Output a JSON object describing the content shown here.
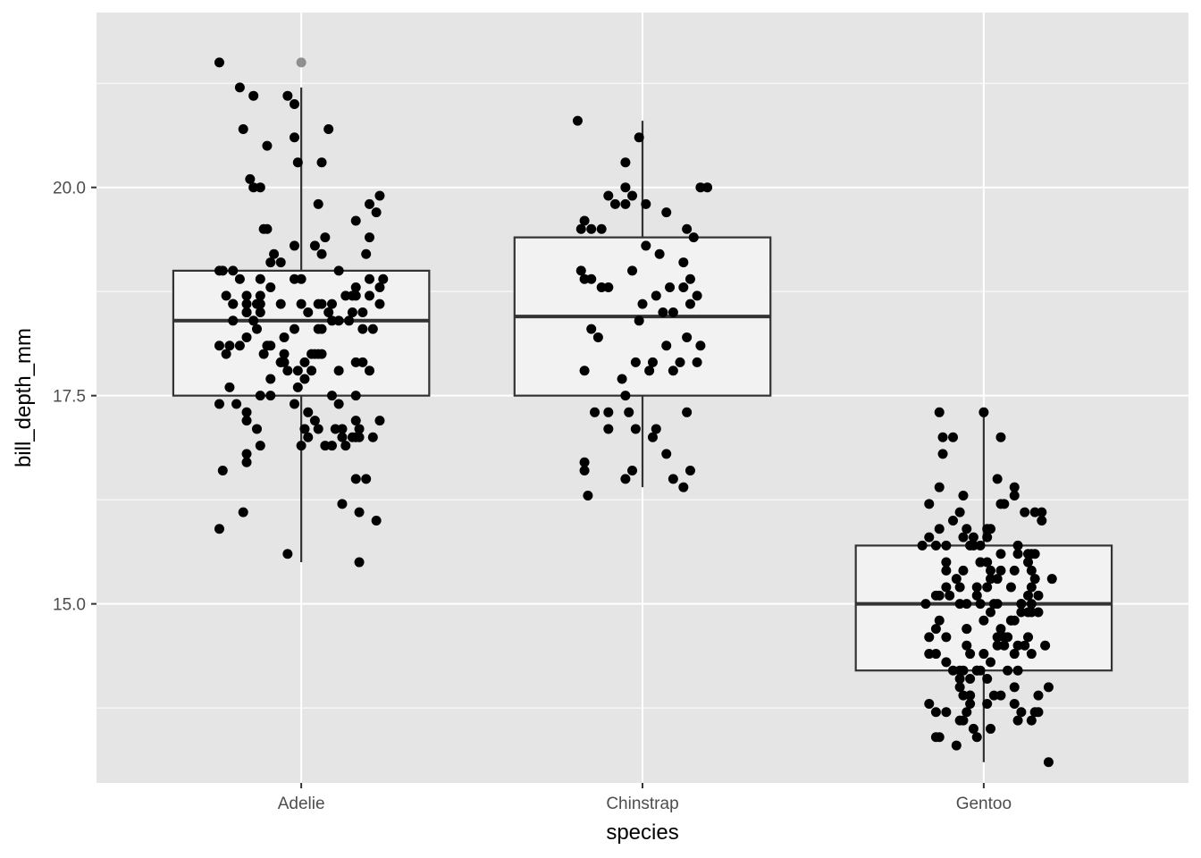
{
  "chart_data": {
    "type": "boxplot",
    "xlabel": "species",
    "ylabel": "bill_depth_mm",
    "categories": [
      "Adelie",
      "Chinstrap",
      "Gentoo"
    ],
    "ylim": [
      12.85,
      22.1
    ],
    "y_ticks": [
      15.0,
      17.5,
      20.0
    ],
    "y_tick_labels": [
      "15.0",
      "17.5",
      "20.0"
    ],
    "y_minor_ticks": [
      13.75,
      16.25,
      18.75,
      21.25
    ],
    "grid": true,
    "legend": "none",
    "colors": {
      "panel": "#e5e5e5",
      "grid": "#ffffff",
      "box_fill": "#f2f2f2",
      "box_line": "#333333",
      "points": "#000000",
      "outlier": "#7f7f7f"
    },
    "boxes": [
      {
        "category": "Adelie",
        "min": 15.5,
        "q1": 17.5,
        "median": 18.4,
        "q3": 19.0,
        "max": 21.2,
        "outliers": [
          21.5
        ]
      },
      {
        "category": "Chinstrap",
        "min": 16.4,
        "q1": 17.5,
        "median": 18.45,
        "q3": 19.4,
        "max": 20.8,
        "outliers": []
      },
      {
        "category": "Gentoo",
        "min": 13.1,
        "q1": 14.2,
        "median": 15.0,
        "q3": 15.7,
        "max": 17.3,
        "outliers": []
      }
    ],
    "points": [
      {
        "category": "Adelie",
        "dx": [
          -0.24,
          -0.18,
          -0.14,
          -0.04,
          -0.02,
          -0.17,
          0.08,
          -0.1,
          -0.02,
          0.06,
          -0.01,
          -0.14,
          0.23,
          -0.15,
          0.22,
          -0.12,
          -0.11,
          0.2,
          -0.1,
          0.07,
          0.16,
          0.2,
          0.04,
          0.19,
          0.06,
          -0.08,
          -0.2,
          -0.18,
          -0.09,
          -0.24,
          -0.12,
          -0.02,
          0.24,
          0.11,
          -0.22,
          0.0,
          0.23,
          -0.16,
          0.15,
          -0.06,
          0.05,
          0.09,
          -0.13,
          -0.2,
          0.06,
          -0.16,
          0.14,
          -0.16,
          0.15,
          0.13,
          0.02,
          -0.14,
          -0.2,
          -0.12,
          0.06,
          0.08,
          -0.02,
          0.11,
          -0.05,
          0.05,
          0.09,
          0.21,
          -0.21,
          -0.1,
          -0.09,
          -0.06,
          0.18,
          -0.18,
          0.04,
          -0.24,
          0.05,
          0.16,
          -0.05,
          0.03,
          0.2,
          -0.22,
          -0.04,
          0.01,
          0.03,
          -0.05,
          0.01,
          -0.01,
          -0.09,
          0.18,
          0.16,
          -0.09,
          -0.01,
          -0.02,
          -0.21,
          -0.12,
          -0.24,
          0.11,
          0.09,
          -0.16,
          0.02,
          0.01,
          -0.16,
          0.04,
          0.16,
          0.23,
          0.1,
          0.17,
          -0.13,
          0.16,
          0.17,
          0.12,
          0.13,
          0.15,
          0.21,
          0.02,
          0.19,
          -0.12,
          -0.16,
          0.05,
          0.07,
          -0.16,
          0.0,
          0.09,
          0.16,
          -0.23,
          0.17,
          0.12,
          0.22,
          -0.17,
          -0.24,
          -0.04,
          0.17,
          0.05,
          -0.16,
          -0.19,
          0.12,
          -0.12,
          0.16,
          -0.12,
          -0.16,
          -0.06,
          -0.11,
          0.18,
          -0.13,
          -0.23,
          0.0,
          0.2,
          -0.06,
          0.23,
          0.11,
          -0.09,
          0.2,
          -0.2,
          -0.02,
          0.16,
          0.06
        ],
        "y": [
          21.5,
          21.2,
          21.1,
          21.1,
          21.0,
          20.7,
          20.7,
          20.5,
          20.6,
          20.3,
          20.3,
          20.0,
          19.9,
          20.1,
          19.7,
          20.0,
          19.5,
          19.8,
          19.5,
          19.4,
          19.6,
          19.4,
          19.3,
          19.2,
          19.2,
          19.2,
          19.0,
          18.9,
          19.1,
          19.0,
          18.9,
          18.9,
          18.9,
          19.0,
          18.7,
          18.9,
          18.8,
          18.7,
          18.7,
          18.6,
          18.6,
          18.6,
          18.6,
          18.6,
          18.6,
          18.6,
          18.4,
          18.5,
          18.5,
          18.7,
          18.5,
          18.4,
          18.4,
          18.6,
          18.3,
          18.5,
          18.3,
          18.4,
          18.2,
          18.3,
          18.4,
          18.3,
          18.1,
          18.1,
          18.1,
          17.9,
          18.3,
          18.1,
          18.0,
          18.1,
          18.0,
          17.9,
          18.0,
          18.0,
          17.8,
          18.0,
          17.8,
          17.9,
          17.8,
          17.9,
          17.7,
          17.8,
          17.5,
          17.9,
          17.5,
          17.7,
          17.6,
          17.4,
          17.6,
          17.5,
          17.4,
          17.4,
          17.5,
          17.3,
          17.3,
          17.1,
          17.2,
          17.2,
          17.2,
          17.2,
          17.1,
          17.1,
          17.1,
          17.0,
          17.0,
          17.0,
          16.9,
          17.0,
          17.0,
          17.0,
          16.5,
          16.9,
          16.8,
          17.1,
          16.9,
          16.7,
          16.9,
          16.9,
          16.5,
          16.6,
          16.1,
          16.2,
          16.0,
          16.1,
          15.9,
          15.6,
          15.5,
          19.8,
          18.2,
          17.4,
          17.1,
          18.5,
          18.8,
          18.7,
          18.5,
          17.9,
          18.0,
          18.5,
          18.3,
          19.0,
          18.6,
          18.9,
          19.1,
          18.6,
          17.8,
          18.8,
          18.7,
          18.6,
          19.3,
          18.7,
          18.0
        ],
        "outlier_dx": [
          0.0
        ]
      },
      {
        "category": "Chinstrap",
        "dx": [
          -0.19,
          -0.01,
          -0.05,
          0.17,
          0.19,
          -0.05,
          -0.03,
          -0.1,
          0.07,
          0.01,
          -0.08,
          0.13,
          -0.05,
          -0.17,
          -0.18,
          -0.15,
          0.15,
          -0.12,
          0.01,
          0.12,
          0.05,
          -0.18,
          -0.15,
          0.14,
          -0.03,
          -0.1,
          0.08,
          0.12,
          0.16,
          0.0,
          -0.17,
          0.14,
          -0.12,
          0.04,
          0.06,
          -0.13,
          -0.01,
          0.09,
          -0.15,
          0.17,
          0.13,
          0.07,
          0.11,
          0.03,
          -0.02,
          0.02,
          0.16,
          -0.17,
          0.09,
          -0.06,
          -0.05,
          -0.1,
          0.13,
          -0.14,
          -0.04,
          -0.02,
          0.04,
          0.03,
          -0.1,
          0.07,
          0.14,
          -0.03,
          -0.17,
          -0.17,
          0.09,
          -0.05,
          0.12,
          -0.16
        ],
        "y": [
          20.8,
          20.6,
          20.3,
          20.0,
          20.0,
          20.0,
          19.9,
          19.9,
          19.7,
          19.8,
          19.8,
          19.5,
          19.8,
          19.6,
          19.5,
          19.5,
          19.4,
          19.5,
          19.3,
          19.1,
          19.2,
          19.0,
          18.9,
          18.9,
          19.0,
          18.8,
          18.8,
          18.8,
          18.7,
          18.6,
          18.9,
          18.6,
          18.8,
          18.7,
          18.5,
          18.2,
          18.4,
          18.5,
          18.3,
          18.1,
          18.2,
          18.1,
          17.9,
          17.9,
          17.9,
          17.8,
          17.9,
          17.8,
          17.8,
          17.7,
          17.5,
          17.3,
          17.3,
          17.3,
          17.3,
          17.1,
          17.1,
          17.0,
          17.1,
          16.8,
          16.6,
          16.6,
          16.6,
          16.7,
          16.5,
          16.5,
          16.4,
          16.3
        ]
      },
      {
        "category": "Gentoo",
        "dx": [
          -0.13,
          0.0,
          -0.12,
          -0.09,
          0.05,
          -0.12,
          0.04,
          0.09,
          0.15,
          -0.06,
          0.06,
          0.17,
          -0.09,
          0.17,
          0.02,
          0.12,
          -0.13,
          -0.05,
          -0.03,
          0.01,
          -0.01,
          0.1,
          -0.14,
          -0.04,
          0.1,
          0.05,
          -0.11,
          0.01,
          0.14,
          -0.01,
          -0.01,
          -0.18,
          0.14,
          0.02,
          -0.08,
          0.09,
          -0.06,
          -0.02,
          0.2,
          0.14,
          0.15,
          -0.14,
          -0.11,
          -0.13,
          0.08,
          -0.02,
          -0.17,
          -0.05,
          0.03,
          -0.07,
          0.04,
          0.11,
          0.18,
          0.13,
          0.16,
          0.09,
          0.02,
          0.14,
          0.07,
          -0.16,
          -0.13,
          -0.16,
          -0.05,
          0.0,
          0.06,
          0.13,
          -0.14,
          -0.11,
          -0.05,
          0.0,
          0.14,
          0.12,
          0.02,
          -0.14,
          0.06,
          -0.02,
          -0.06,
          0.04,
          0.01,
          0.09,
          -0.07,
          -0.04,
          -0.07,
          0.19,
          -0.16,
          0.1,
          0.05,
          0.07,
          0.16,
          -0.04,
          -0.06,
          0.03,
          0.01,
          -0.04,
          0.16,
          -0.05,
          0.1,
          -0.14,
          0.11,
          0.09,
          -0.11,
          -0.06,
          0.14,
          -0.07,
          0.15,
          -0.03,
          -0.02,
          -0.13,
          0.02,
          -0.14,
          -0.08,
          0.19,
          0.1,
          -0.07,
          -0.11,
          0.13,
          -0.11,
          0.09,
          -0.01,
          -0.04,
          -0.13,
          0.15,
          0.16,
          0.05,
          0.11,
          -0.05,
          -0.02,
          -0.07,
          0.01,
          0.13,
          -0.09,
          -0.06,
          -0.16,
          -0.11,
          0.11,
          0.04,
          -0.01,
          -0.03,
          0.05,
          0.04,
          -0.07,
          0.08,
          0.02,
          0.08,
          -0.1,
          0.09,
          0.13,
          0.14,
          0.05,
          0.01,
          -0.04,
          -0.16
        ],
        "y": [
          17.3,
          17.3,
          17.0,
          17.0,
          17.0,
          16.8,
          16.5,
          16.3,
          16.1,
          16.3,
          16.2,
          16.0,
          16.0,
          16.1,
          15.9,
          16.1,
          15.9,
          15.9,
          15.8,
          15.9,
          15.7,
          15.6,
          15.7,
          15.7,
          15.7,
          15.6,
          15.7,
          15.5,
          15.6,
          15.5,
          15.5,
          15.7,
          15.4,
          15.4,
          15.3,
          15.4,
          15.4,
          15.2,
          15.3,
          15.2,
          15.3,
          15.1,
          15.2,
          15.1,
          15.2,
          15.1,
          15.0,
          15.0,
          15.0,
          15.0,
          15.0,
          15.0,
          14.5,
          14.9,
          14.9,
          14.8,
          14.9,
          14.9,
          14.6,
          14.6,
          14.8,
          14.4,
          14.7,
          14.8,
          14.6,
          14.6,
          14.7,
          14.6,
          14.7,
          14.4,
          14.4,
          14.5,
          14.3,
          14.4,
          14.5,
          14.2,
          14.2,
          14.5,
          14.1,
          14.4,
          14.2,
          14.1,
          14.1,
          14.0,
          13.8,
          14.2,
          13.9,
          14.2,
          13.7,
          13.9,
          13.9,
          13.9,
          13.8,
          13.8,
          13.9,
          13.7,
          13.6,
          13.7,
          13.7,
          13.8,
          13.7,
          13.6,
          13.6,
          13.6,
          13.7,
          13.5,
          13.4,
          13.4,
          13.5,
          13.4,
          13.3,
          13.1,
          14.5,
          16.1,
          15.5,
          15.5,
          14.3,
          16.4,
          14.2,
          13.9,
          16.4,
          15.6,
          15.1,
          14.7,
          15.0,
          14.5,
          14.2,
          14.0,
          15.8,
          15.1,
          14.2,
          15.8,
          15.8,
          15.4,
          14.9,
          14.6,
          15.0,
          15.7,
          16.2,
          15.3,
          15.2,
          14.8,
          15.3,
          14.8,
          15.1,
          14.0,
          15.6,
          15.0,
          15.4,
          15.2,
          14.4,
          16.2
        ]
      }
    ]
  }
}
